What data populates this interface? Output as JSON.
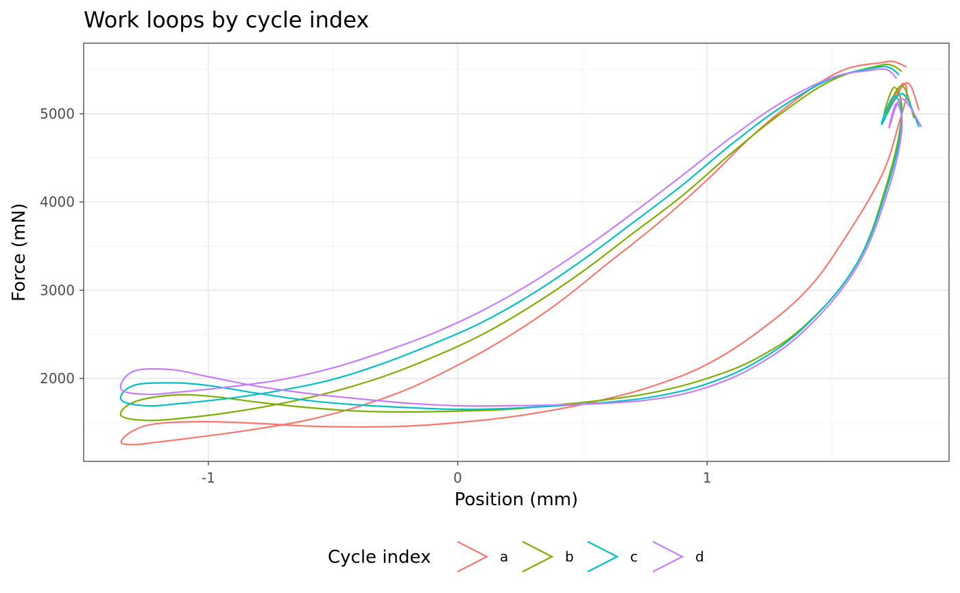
{
  "chart_data": {
    "type": "line",
    "title": "Work loops by cycle index",
    "xlabel": "Position (mm)",
    "ylabel": "Force (mN)",
    "xlim": [
      -1.5,
      1.97
    ],
    "ylim": [
      1060,
      5800
    ],
    "x_ticks": [
      -1,
      0,
      1
    ],
    "x_tick_labels": [
      "-1",
      "0",
      "1"
    ],
    "y_ticks": [
      2000,
      3000,
      4000,
      5000
    ],
    "y_tick_labels": [
      "2000",
      "3000",
      "4000",
      "5000"
    ],
    "grid": true,
    "legend": {
      "title": "Cycle index",
      "position": "bottom"
    },
    "series": [
      {
        "name": "a",
        "color": "#F8766D",
        "x": [
          1.8,
          1.75,
          1.7,
          1.55,
          1.4,
          1.2,
          1.0,
          0.8,
          0.6,
          0.4,
          0.2,
          0.0,
          -0.2,
          -0.4,
          -0.6,
          -0.8,
          -1.0,
          -1.2,
          -1.3,
          -1.35,
          -1.3,
          -1.2,
          -1.0,
          -0.8,
          -0.6,
          -0.4,
          -0.2,
          0.0,
          0.2,
          0.4,
          0.6,
          0.8,
          1.0,
          1.2,
          1.4,
          1.55,
          1.7,
          1.77,
          1.8,
          1.78,
          1.72,
          1.8,
          1.85
        ],
        "y": [
          5530,
          5590,
          5580,
          5500,
          5250,
          4800,
          4250,
          3750,
          3300,
          2850,
          2470,
          2150,
          1880,
          1680,
          1530,
          1430,
          1350,
          1280,
          1250,
          1280,
          1410,
          1490,
          1510,
          1490,
          1460,
          1450,
          1460,
          1500,
          1560,
          1650,
          1770,
          1930,
          2160,
          2520,
          3000,
          3580,
          4300,
          4900,
          5230,
          5330,
          4990,
          5350,
          5040
        ]
      },
      {
        "name": "b",
        "color": "#7CAE00",
        "x": [
          1.78,
          1.74,
          1.68,
          1.5,
          1.3,
          1.1,
          0.9,
          0.7,
          0.5,
          0.3,
          0.1,
          -0.1,
          -0.3,
          -0.5,
          -0.7,
          -0.9,
          -1.1,
          -1.25,
          -1.35,
          -1.3,
          -1.15,
          -1.0,
          -0.8,
          -0.6,
          -0.4,
          -0.2,
          0.0,
          0.2,
          0.4,
          0.6,
          0.8,
          1.0,
          1.2,
          1.4,
          1.6,
          1.72,
          1.78,
          1.75,
          1.71,
          1.78,
          1.83
        ],
        "y": [
          5480,
          5550,
          5540,
          5380,
          5010,
          4560,
          4070,
          3640,
          3210,
          2830,
          2500,
          2240,
          2020,
          1850,
          1720,
          1620,
          1550,
          1525,
          1580,
          1730,
          1810,
          1800,
          1730,
          1670,
          1630,
          1620,
          1630,
          1650,
          1700,
          1760,
          1850,
          2000,
          2230,
          2620,
          3300,
          4200,
          4980,
          5300,
          4980,
          5320,
          4950
        ]
      },
      {
        "name": "c",
        "color": "#00BFC4",
        "x": [
          1.77,
          1.73,
          1.67,
          1.5,
          1.3,
          1.1,
          0.9,
          0.7,
          0.5,
          0.3,
          0.1,
          -0.1,
          -0.3,
          -0.5,
          -0.7,
          -0.9,
          -1.1,
          -1.25,
          -1.35,
          -1.3,
          -1.15,
          -1.0,
          -0.8,
          -0.6,
          -0.4,
          -0.2,
          0.0,
          0.2,
          0.4,
          0.6,
          0.8,
          1.0,
          1.2,
          1.4,
          1.6,
          1.72,
          1.78,
          1.75,
          1.7,
          1.78,
          1.85
        ],
        "y": [
          5440,
          5525,
          5520,
          5400,
          5080,
          4660,
          4190,
          3760,
          3340,
          2960,
          2640,
          2390,
          2170,
          1990,
          1870,
          1780,
          1720,
          1690,
          1760,
          1920,
          1950,
          1920,
          1830,
          1750,
          1700,
          1670,
          1650,
          1660,
          1690,
          1730,
          1800,
          1940,
          2190,
          2610,
          3300,
          4150,
          4900,
          5200,
          4880,
          5230,
          4850
        ]
      },
      {
        "name": "d",
        "color": "#C77CFF",
        "x": [
          1.76,
          1.72,
          1.65,
          1.5,
          1.3,
          1.1,
          0.9,
          0.7,
          0.5,
          0.3,
          0.1,
          -0.1,
          -0.3,
          -0.5,
          -0.7,
          -0.9,
          -1.1,
          -1.25,
          -1.35,
          -1.3,
          -1.15,
          -1.0,
          -0.8,
          -0.6,
          -0.4,
          -0.2,
          0.0,
          0.2,
          0.4,
          0.6,
          0.8,
          1.0,
          1.2,
          1.4,
          1.6,
          1.72,
          1.78,
          1.76,
          1.73,
          1.78,
          1.86
        ],
        "y": [
          5400,
          5500,
          5490,
          5410,
          5130,
          4740,
          4300,
          3870,
          3460,
          3090,
          2770,
          2510,
          2300,
          2120,
          1990,
          1910,
          1850,
          1820,
          1880,
          2080,
          2100,
          2020,
          1910,
          1830,
          1770,
          1720,
          1690,
          1690,
          1700,
          1720,
          1770,
          1900,
          2150,
          2570,
          3260,
          4080,
          4800,
          5120,
          4840,
          5170,
          4850
        ]
      }
    ]
  }
}
